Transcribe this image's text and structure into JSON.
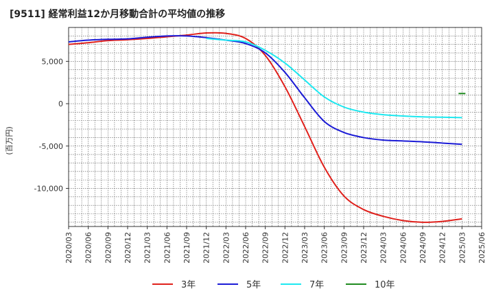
{
  "chart_data": {
    "type": "line",
    "title": "[9511]  経常利益12か月移動合計の平均値の推移",
    "ylabel": "(百万円)",
    "xlabel": "",
    "ylim": [
      -14500,
      9000
    ],
    "yticks": [
      5000,
      0,
      -5000,
      -10000
    ],
    "ytick_labels": [
      "5,000",
      "0",
      "-5,000",
      "-10,000"
    ],
    "x_ticks": [
      "2020/03",
      "2020/06",
      "2020/09",
      "2020/12",
      "2021/03",
      "2021/06",
      "2021/09",
      "2021/12",
      "2022/03",
      "2022/06",
      "2022/09",
      "2022/12",
      "2023/03",
      "2023/06",
      "2023/09",
      "2023/12",
      "2024/03",
      "2024/06",
      "2024/09",
      "2024/12",
      "2025/03",
      "2025/06"
    ],
    "grid": true,
    "legend_position": "bottom",
    "series": [
      {
        "name": "3年",
        "color": "#e0201b",
        "values": [
          {
            "x": "2020/03",
            "y": 7000
          },
          {
            "x": "2020/06",
            "y": 7200
          },
          {
            "x": "2020/09",
            "y": 7450
          },
          {
            "x": "2020/12",
            "y": 7550
          },
          {
            "x": "2021/03",
            "y": 7700
          },
          {
            "x": "2021/06",
            "y": 7900
          },
          {
            "x": "2021/09",
            "y": 8100
          },
          {
            "x": "2021/12",
            "y": 8350
          },
          {
            "x": "2022/03",
            "y": 8300
          },
          {
            "x": "2022/06",
            "y": 7700
          },
          {
            "x": "2022/09",
            "y": 5700
          },
          {
            "x": "2022/12",
            "y": 2000
          },
          {
            "x": "2023/03",
            "y": -2700
          },
          {
            "x": "2023/06",
            "y": -7500
          },
          {
            "x": "2023/09",
            "y": -10900
          },
          {
            "x": "2023/12",
            "y": -12500
          },
          {
            "x": "2024/03",
            "y": -13300
          },
          {
            "x": "2024/06",
            "y": -13800
          },
          {
            "x": "2024/09",
            "y": -14000
          },
          {
            "x": "2024/12",
            "y": -13900
          },
          {
            "x": "2025/03",
            "y": -13600
          }
        ]
      },
      {
        "name": "5年",
        "color": "#1a1ad6",
        "values": [
          {
            "x": "2020/03",
            "y": 7300
          },
          {
            "x": "2020/06",
            "y": 7500
          },
          {
            "x": "2020/09",
            "y": 7600
          },
          {
            "x": "2020/12",
            "y": 7650
          },
          {
            "x": "2021/03",
            "y": 7850
          },
          {
            "x": "2021/06",
            "y": 8000
          },
          {
            "x": "2021/09",
            "y": 8000
          },
          {
            "x": "2021/12",
            "y": 7800
          },
          {
            "x": "2022/03",
            "y": 7500
          },
          {
            "x": "2022/06",
            "y": 7100
          },
          {
            "x": "2022/09",
            "y": 6000
          },
          {
            "x": "2022/12",
            "y": 3700
          },
          {
            "x": "2023/03",
            "y": 700
          },
          {
            "x": "2023/06",
            "y": -2100
          },
          {
            "x": "2023/09",
            "y": -3400
          },
          {
            "x": "2023/12",
            "y": -4000
          },
          {
            "x": "2024/03",
            "y": -4300
          },
          {
            "x": "2024/06",
            "y": -4400
          },
          {
            "x": "2024/09",
            "y": -4500
          },
          {
            "x": "2024/12",
            "y": -4650
          },
          {
            "x": "2025/03",
            "y": -4800
          }
        ]
      },
      {
        "name": "7年",
        "color": "#1ce8f0",
        "values": [
          {
            "x": "2021/12",
            "y": 7700
          },
          {
            "x": "2022/03",
            "y": 7500
          },
          {
            "x": "2022/06",
            "y": 7300
          },
          {
            "x": "2022/09",
            "y": 6300
          },
          {
            "x": "2022/12",
            "y": 4800
          },
          {
            "x": "2023/03",
            "y": 2800
          },
          {
            "x": "2023/06",
            "y": 800
          },
          {
            "x": "2023/09",
            "y": -400
          },
          {
            "x": "2023/12",
            "y": -1000
          },
          {
            "x": "2024/03",
            "y": -1300
          },
          {
            "x": "2024/06",
            "y": -1450
          },
          {
            "x": "2024/09",
            "y": -1550
          },
          {
            "x": "2024/12",
            "y": -1600
          },
          {
            "x": "2025/03",
            "y": -1650
          }
        ]
      },
      {
        "name": "10年",
        "color": "#1e8a1e",
        "values": [
          {
            "x": "2025/03",
            "y": 1200
          }
        ]
      }
    ]
  }
}
